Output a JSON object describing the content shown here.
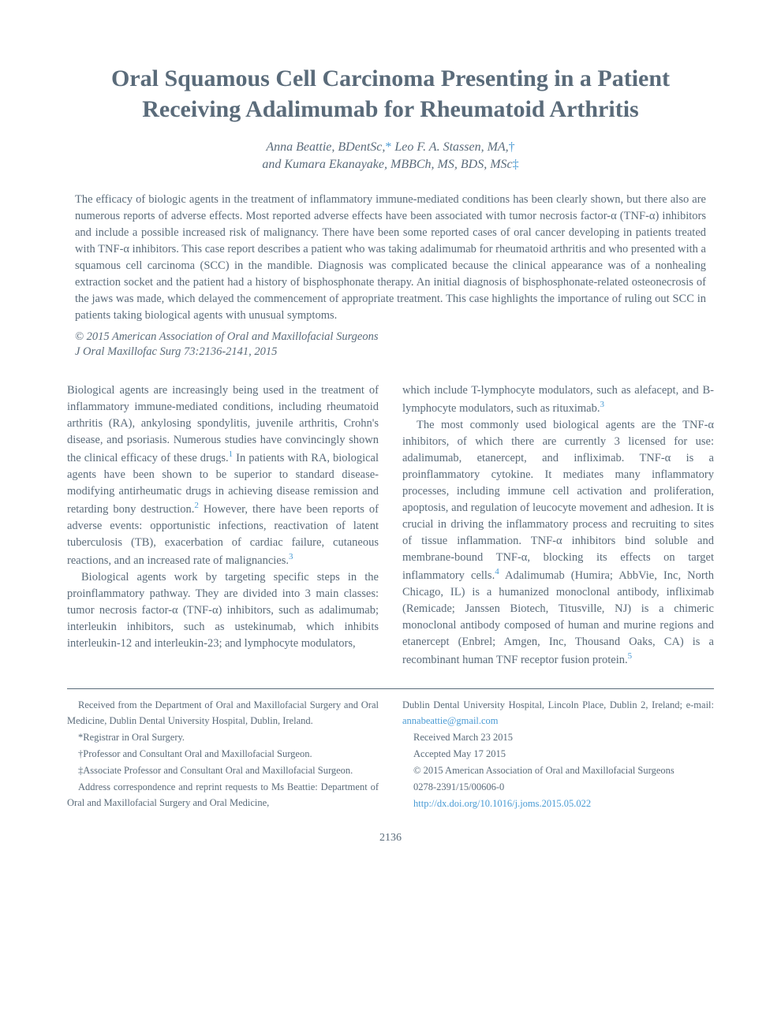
{
  "title": "Oral Squamous Cell Carcinoma Presenting in a Patient Receiving Adalimumab for Rheumatoid Arthritis",
  "authors": {
    "line1": "Anna Beattie, BDentSc,",
    "marker1": "*",
    "line1b": " Leo F. A. Stassen, MA,",
    "marker2": "†",
    "line2": "and Kumara Ekanayake, MBBCh, MS, BDS, MSc",
    "marker3": "‡"
  },
  "abstract": "The efficacy of biologic agents in the treatment of inflammatory immune-mediated conditions has been clearly shown, but there also are numerous reports of adverse effects. Most reported adverse effects have been associated with tumor necrosis factor-α (TNF-α) inhibitors and include a possible increased risk of malignancy. There have been some reported cases of oral cancer developing in patients treated with TNF-α inhibitors. This case report describes a patient who was taking adalimumab for rheumatoid arthritis and who presented with a squamous cell carcinoma (SCC) in the mandible. Diagnosis was complicated because the clinical appearance was of a nonhealing extraction socket and the patient had a history of bisphosphonate therapy. An initial diagnosis of bisphosphonate-related osteonecrosis of the jaws was made, which delayed the commencement of appropriate treatment. This case highlights the importance of ruling out SCC in patients taking biological agents with unusual symptoms.",
  "copyright": "© 2015 American Association of Oral and Maxillofacial Surgeons",
  "citation": "J Oral Maxillofac Surg 73:2136-2141, 2015",
  "body": {
    "col1": {
      "p1a": "Biological agents are increasingly being used in the treatment of inflammatory immune-mediated conditions, including rheumatoid arthritis (RA), ankylosing spondylitis, juvenile arthritis, Crohn's disease, and psoriasis. Numerous studies have convincingly shown the clinical efficacy of these drugs.",
      "ref1": "1",
      "p1b": " In patients with RA, biological agents have been shown to be superior to standard disease-modifying antirheumatic drugs in achieving disease remission and retarding bony destruction.",
      "ref2": "2",
      "p1c": " However, there have been reports of adverse events: opportunistic infections, reactivation of latent tuberculosis (TB), exacerbation of cardiac failure, cutaneous reactions, and an increased rate of malignancies.",
      "ref3": "3",
      "p2": "Biological agents work by targeting specific steps in the proinflammatory pathway. They are divided into 3 main classes: tumor necrosis factor-α (TNF-α) inhibitors, such as adalimumab; interleukin inhibitors, such as ustekinumab, which inhibits interleukin-12 and interleukin-23; and lymphocyte modulators,"
    },
    "col2": {
      "p1a": "which include T-lymphocyte modulators, such as alefacept, and B-lymphocyte modulators, such as rituximab.",
      "ref3b": "3",
      "p2a": "The most commonly used biological agents are the TNF-α inhibitors, of which there are currently 3 licensed for use: adalimumab, etanercept, and infliximab. TNF-α is a proinflammatory cytokine. It mediates many inflammatory processes, including immune cell activation and proliferation, apoptosis, and regulation of leucocyte movement and adhesion. It is crucial in driving the inflammatory process and recruiting to sites of tissue inflammation. TNF-α inhibitors bind soluble and membrane-bound TNF-α, blocking its effects on target inflammatory cells.",
      "ref4": "4",
      "p2b": " Adalimumab (Humira; AbbVie, Inc, North Chicago, IL) is a humanized monoclonal antibody, infliximab (Remicade; Janssen Biotech, Titusville, NJ) is a chimeric monoclonal antibody composed of human and murine regions and etanercept (Enbrel; Amgen, Inc, Thousand Oaks, CA) is a recombinant human TNF receptor fusion protein.",
      "ref5": "5"
    }
  },
  "footer": {
    "left": {
      "p1": "Received from the Department of Oral and Maxillofacial Surgery and Oral Medicine, Dublin Dental University Hospital, Dublin, Ireland.",
      "p2": "*Registrar in Oral Surgery.",
      "p3": "†Professor and Consultant Oral and Maxillofacial Surgeon.",
      "p4": "‡Associate Professor and Consultant Oral and Maxillofacial Surgeon.",
      "p5": "Address correspondence and reprint requests to Ms Beattie: Department of Oral and Maxillofacial Surgery and Oral Medicine,"
    },
    "right": {
      "p1a": "Dublin Dental University Hospital, Lincoln Place, Dublin 2, Ireland; e-mail: ",
      "email": "annabeattie@gmail.com",
      "p2": "Received March 23 2015",
      "p3": "Accepted May 17 2015",
      "p4": "© 2015 American Association of Oral and Maxillofacial Surgeons",
      "p5": "0278-2391/15/00606-0",
      "doi": "http://dx.doi.org/10.1016/j.joms.2015.05.022"
    }
  },
  "pageNumber": "2136"
}
